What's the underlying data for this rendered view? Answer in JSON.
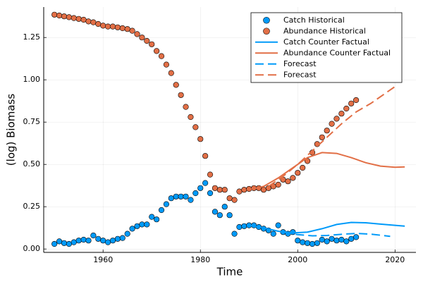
{
  "chart_data": {
    "type": "scatter-line",
    "xlabel": "Time",
    "ylabel": "(log) Biomass",
    "xlim": [
      1947.8,
      2024.3
    ],
    "ylim": [
      -0.02,
      1.43
    ],
    "xticks": [
      1960,
      1980,
      2000,
      2020
    ],
    "yticks": [
      {
        "value": 0,
        "label": "0.00"
      },
      {
        "value": 0.25,
        "label": "0.25"
      },
      {
        "value": 0.5,
        "label": "0.50"
      },
      {
        "value": 0.75,
        "label": "0.75"
      },
      {
        "value": 1,
        "label": "1.00"
      },
      {
        "value": 1.25,
        "label": "1.25"
      }
    ],
    "grid": true,
    "legend": "top-right",
    "series": [
      {
        "name": "Catch Historical",
        "type": "scatter",
        "color": "#009af9",
        "x": [
          1950,
          1951,
          1952,
          1953,
          1954,
          1955,
          1956,
          1957,
          1958,
          1959,
          1960,
          1961,
          1962,
          1963,
          1964,
          1965,
          1966,
          1967,
          1968,
          1969,
          1970,
          1971,
          1972,
          1973,
          1974,
          1975,
          1976,
          1977,
          1978,
          1979,
          1980,
          1981,
          1982,
          1983,
          1984,
          1985,
          1986,
          1987,
          1988,
          1989,
          1990,
          1991,
          1992,
          1993,
          1994,
          1995,
          1996,
          1997,
          1998,
          1999,
          2000,
          2001,
          2002,
          2003,
          2004,
          2005,
          2006,
          2007,
          2008,
          2009,
          2010,
          2011,
          2012
        ],
        "values": [
          0.03,
          0.045,
          0.035,
          0.03,
          0.04,
          0.05,
          0.055,
          0.05,
          0.08,
          0.06,
          0.05,
          0.04,
          0.05,
          0.06,
          0.065,
          0.09,
          0.12,
          0.135,
          0.145,
          0.145,
          0.19,
          0.175,
          0.23,
          0.265,
          0.3,
          0.31,
          0.31,
          0.31,
          0.29,
          0.33,
          0.36,
          0.39,
          0.33,
          0.22,
          0.2,
          0.25,
          0.2,
          0.09,
          0.13,
          0.135,
          0.14,
          0.14,
          0.13,
          0.12,
          0.11,
          0.09,
          0.14,
          0.1,
          0.09,
          0.1,
          0.05,
          0.04,
          0.035,
          0.03,
          0.035,
          0.055,
          0.045,
          0.06,
          0.05,
          0.055,
          0.045,
          0.06,
          0.07
        ]
      },
      {
        "name": "Abundance Historical",
        "type": "scatter",
        "color": "#e26f46",
        "x": [
          1950,
          1951,
          1952,
          1953,
          1954,
          1955,
          1956,
          1957,
          1958,
          1959,
          1960,
          1961,
          1962,
          1963,
          1964,
          1965,
          1966,
          1967,
          1968,
          1969,
          1970,
          1971,
          1972,
          1973,
          1974,
          1975,
          1976,
          1977,
          1978,
          1979,
          1980,
          1981,
          1982,
          1983,
          1984,
          1985,
          1986,
          1987,
          1988,
          1989,
          1990,
          1991,
          1992,
          1993,
          1994,
          1995,
          1996,
          1997,
          1998,
          1999,
          2000,
          2001,
          2002,
          2003,
          2004,
          2005,
          2006,
          2007,
          2008,
          2009,
          2010,
          2011,
          2012
        ],
        "values": [
          1.385,
          1.38,
          1.375,
          1.37,
          1.365,
          1.36,
          1.355,
          1.345,
          1.34,
          1.33,
          1.32,
          1.315,
          1.315,
          1.31,
          1.305,
          1.3,
          1.29,
          1.27,
          1.25,
          1.23,
          1.21,
          1.17,
          1.14,
          1.09,
          1.04,
          0.97,
          0.91,
          0.84,
          0.78,
          0.72,
          0.65,
          0.55,
          0.44,
          0.36,
          0.35,
          0.35,
          0.3,
          0.29,
          0.34,
          0.35,
          0.355,
          0.36,
          0.36,
          0.35,
          0.36,
          0.37,
          0.38,
          0.41,
          0.4,
          0.42,
          0.45,
          0.48,
          0.52,
          0.57,
          0.62,
          0.66,
          0.7,
          0.74,
          0.77,
          0.8,
          0.83,
          0.86,
          0.88
        ]
      },
      {
        "name": "Catch Counter Factual",
        "type": "line",
        "color": "#009af9",
        "dash": false,
        "x": [
          1990,
          1993,
          1996,
          1999,
          2002,
          2005,
          2008,
          2011,
          2014,
          2017,
          2020,
          2022
        ],
        "values": [
          0.14,
          0.125,
          0.105,
          0.095,
          0.1,
          0.12,
          0.145,
          0.157,
          0.155,
          0.147,
          0.14,
          0.135
        ]
      },
      {
        "name": "Abundance Counter Factual",
        "type": "line",
        "color": "#e26f46",
        "dash": false,
        "x": [
          1990,
          1993,
          1996,
          1999,
          2002,
          2005,
          2008,
          2011,
          2014,
          2017,
          2020,
          2022
        ],
        "values": [
          0.35,
          0.37,
          0.42,
          0.48,
          0.54,
          0.57,
          0.565,
          0.54,
          0.51,
          0.49,
          0.483,
          0.485
        ]
      },
      {
        "name": "Forecast",
        "type": "line",
        "color": "#009af9",
        "dash": true,
        "x": [
          1997,
          2000,
          2003,
          2006,
          2009,
          2012,
          2015,
          2019
        ],
        "values": [
          0.1,
          0.085,
          0.078,
          0.08,
          0.087,
          0.092,
          0.088,
          0.075
        ]
      },
      {
        "name": "Forecast",
        "type": "line",
        "color": "#e26f46",
        "dash": true,
        "x": [
          1994,
          1997,
          2000,
          2003,
          2006,
          2009,
          2012,
          2015,
          2018,
          2020
        ],
        "values": [
          0.37,
          0.43,
          0.5,
          0.58,
          0.66,
          0.74,
          0.81,
          0.86,
          0.92,
          0.96
        ]
      }
    ]
  }
}
